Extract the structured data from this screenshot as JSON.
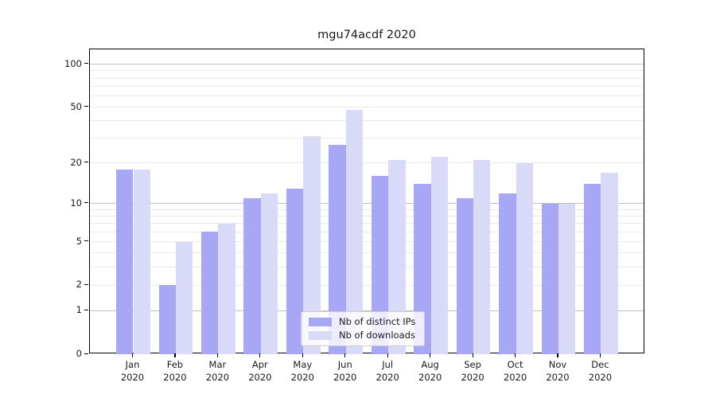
{
  "title": "mgu74acdf 2020",
  "chart_data": {
    "type": "bar",
    "title": "mgu74acdf 2020",
    "categories": [
      "Jan 2020",
      "Feb 2020",
      "Mar 2020",
      "Apr 2020",
      "May 2020",
      "Jun 2020",
      "Jul 2020",
      "Aug 2020",
      "Sep 2020",
      "Oct 2020",
      "Nov 2020",
      "Dec 2020"
    ],
    "series": [
      {
        "name": "Nb of distinct IPs",
        "color": "#a7a7f6",
        "values": [
          18,
          2,
          6,
          11,
          13,
          27,
          16,
          14,
          11,
          12,
          10,
          14
        ]
      },
      {
        "name": "Nb of downloads",
        "color": "#d9d9f8",
        "values": [
          18,
          5,
          7,
          12,
          31,
          48,
          21,
          22,
          21,
          20,
          10,
          17
        ]
      }
    ],
    "xlabel": "",
    "ylabel": "",
    "yscale": "symlog",
    "ylim": [
      0,
      127
    ],
    "yticks_labeled": [
      0,
      1,
      2,
      5,
      10,
      20,
      50,
      100
    ],
    "grid_major": [
      1,
      10,
      100
    ],
    "grid_minor": [
      2,
      3,
      4,
      5,
      6,
      7,
      8,
      9,
      20,
      30,
      40,
      50,
      60,
      70,
      80,
      90
    ],
    "grid": "horizontal",
    "legend_position": "lower center",
    "colors": {
      "grid_major": "#c0c0c0",
      "grid_minor": "#e9e9e9",
      "axis": "#000000",
      "text": "#1a1a1a"
    }
  }
}
